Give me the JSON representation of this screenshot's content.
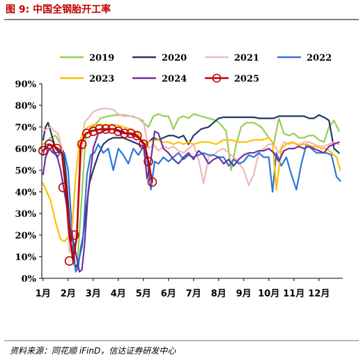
{
  "header": {
    "title": "图 9:  中国全钢胎开工率"
  },
  "footer": {
    "source": "资料来源：同花顺 iFinD，信达证券研发中心"
  },
  "chart_data": {
    "type": "line",
    "title": "",
    "xlabel": "",
    "ylabel": "",
    "ylim": [
      0,
      90
    ],
    "xlim": [
      0.95,
      12.95
    ],
    "y_ticks": [
      0,
      10,
      20,
      30,
      40,
      50,
      60,
      70,
      80,
      90
    ],
    "y_tick_labels": [
      "0%",
      "10%",
      "20%",
      "30%",
      "40%",
      "50%",
      "60%",
      "70%",
      "80%",
      "90%"
    ],
    "x_ticks": [
      1,
      2,
      3,
      4,
      5,
      6,
      7,
      8,
      9,
      10,
      11,
      12
    ],
    "x_tick_labels": [
      "1月",
      "2月",
      "3月",
      "4月",
      "5月",
      "6月",
      "7月",
      "8月",
      "9月",
      "10月",
      "11月",
      "12月"
    ],
    "legend": {
      "placement": "top",
      "columns": 4
    },
    "grid": false,
    "series": [
      {
        "name": "2019",
        "color": "#92d050",
        "markers": false,
        "x": [
          1.0,
          1.1,
          1.3,
          1.5,
          1.7,
          1.9,
          2.05,
          2.2,
          2.35,
          2.5,
          2.7,
          3.0,
          3.3,
          3.6,
          3.9,
          4.2,
          4.5,
          4.8,
          5.0,
          5.2,
          5.4,
          5.6,
          5.8,
          6.0,
          6.2,
          6.4,
          6.6,
          6.8,
          7.0,
          7.3,
          7.6,
          7.9,
          8.1,
          8.3,
          8.5,
          8.7,
          8.9,
          9.1,
          9.4,
          9.7,
          10.0,
          10.2,
          10.4,
          10.6,
          10.8,
          11.0,
          11.2,
          11.4,
          11.6,
          11.8,
          12.0,
          12.2,
          12.4,
          12.6,
          12.8
        ],
        "values": [
          62,
          63,
          65,
          66,
          62,
          48,
          20,
          7,
          4,
          30,
          66,
          70,
          74,
          75,
          75.5,
          75.5,
          75,
          74,
          72,
          70,
          75,
          76,
          75,
          75,
          69,
          74,
          75,
          74,
          76,
          75,
          74,
          73,
          71,
          68,
          50,
          62,
          70,
          72,
          72,
          70,
          65,
          62,
          74,
          67,
          66,
          67,
          65,
          65,
          66,
          66,
          64,
          63,
          70,
          73,
          68
        ]
      },
      {
        "name": "2020",
        "color": "#203864",
        "markers": false,
        "x": [
          1.0,
          1.1,
          1.2,
          1.35,
          1.5,
          1.65,
          1.8,
          1.9,
          2.0,
          2.1,
          2.2,
          2.3,
          2.4,
          2.55,
          2.7,
          2.85,
          3.0,
          3.2,
          3.4,
          3.6,
          3.8,
          4.0,
          4.2,
          4.4,
          4.6,
          4.8,
          5.0,
          5.2,
          5.4,
          5.6,
          5.8,
          6.0,
          6.2,
          6.4,
          6.6,
          6.8,
          7.0,
          7.3,
          7.6,
          7.8,
          8.0,
          8.2,
          8.4,
          8.6,
          8.8,
          9.0,
          9.2,
          9.4,
          9.6,
          9.8,
          10.0,
          10.2,
          10.4,
          10.6,
          10.8,
          11.0,
          11.2,
          11.4,
          11.6,
          11.8,
          12.0,
          12.2,
          12.4,
          12.6,
          12.8
        ],
        "values": [
          64,
          70,
          72,
          66,
          60,
          58,
          59,
          50,
          35,
          20,
          10,
          5,
          7,
          15,
          30,
          44,
          50,
          57,
          62,
          64,
          65,
          65,
          65,
          64,
          63,
          62,
          61,
          63,
          65,
          64,
          65,
          66,
          66,
          65,
          66,
          62,
          66,
          69,
          70,
          72,
          74,
          74.5,
          74.5,
          74.5,
          74.5,
          74.5,
          74.5,
          74.5,
          74,
          74,
          74,
          74,
          75,
          75,
          75,
          75,
          75,
          75,
          74,
          74,
          75.5,
          74.5,
          73,
          60,
          58
        ]
      },
      {
        "name": "2021",
        "color": "#f4b6b6",
        "markers": false,
        "x": [
          1.0,
          1.15,
          1.3,
          1.45,
          1.6,
          1.75,
          1.9,
          2.05,
          2.2,
          2.35,
          2.5,
          2.65,
          2.8,
          3.0,
          3.2,
          3.4,
          3.6,
          3.8,
          4.0,
          4.2,
          4.4,
          4.6,
          4.8,
          5.0,
          5.2,
          5.4,
          5.6,
          5.8,
          6.0,
          6.2,
          6.4,
          6.6,
          6.8,
          7.0,
          7.2,
          7.4,
          7.6,
          7.8,
          8.0,
          8.2,
          8.4,
          8.6,
          8.8,
          9.0,
          9.2,
          9.4,
          9.6,
          9.8,
          10.0,
          10.2,
          10.4,
          10.6,
          10.8,
          11.0,
          11.2,
          11.4,
          11.6,
          11.8,
          12.0,
          12.2,
          12.4,
          12.6,
          12.8
        ],
        "values": [
          68,
          69,
          70,
          68,
          67,
          60,
          40,
          12,
          18,
          22,
          52,
          72,
          74,
          77,
          78,
          78.5,
          78.5,
          78,
          76,
          75,
          75,
          75,
          74,
          73,
          60,
          62,
          59,
          61,
          60,
          61,
          59,
          58,
          60,
          62,
          55,
          44,
          56,
          57,
          59,
          60,
          58,
          56,
          54,
          50,
          43,
          48,
          58,
          60,
          62,
          62,
          58,
          63,
          62,
          63,
          61,
          63,
          63,
          62,
          61,
          61,
          62,
          63,
          62
        ]
      },
      {
        "name": "2022",
        "color": "#2e75d6",
        "markers": false,
        "x": [
          1.0,
          1.1,
          1.25,
          1.4,
          1.55,
          1.7,
          1.85,
          2.0,
          2.1,
          2.2,
          2.3,
          2.4,
          2.5,
          2.6,
          2.75,
          2.9,
          3.05,
          3.2,
          3.4,
          3.6,
          3.8,
          4.0,
          4.2,
          4.4,
          4.6,
          4.8,
          5.0,
          5.15,
          5.3,
          5.45,
          5.6,
          5.8,
          6.0,
          6.2,
          6.4,
          6.6,
          6.8,
          7.0,
          7.2,
          7.4,
          7.6,
          7.8,
          8.0,
          8.2,
          8.4,
          8.6,
          8.8,
          9.0,
          9.2,
          9.4,
          9.6,
          9.8,
          10.0,
          10.15,
          10.3,
          10.5,
          10.7,
          10.9,
          11.1,
          11.3,
          11.5,
          11.7,
          11.9,
          12.1,
          12.3,
          12.5,
          12.7,
          12.85
        ],
        "values": [
          57,
          62,
          62,
          60,
          56,
          58,
          58,
          50,
          32,
          15,
          3,
          5,
          14,
          20,
          48,
          57,
          58,
          62,
          58,
          60,
          50,
          60,
          57,
          53,
          60,
          57,
          61,
          55,
          41,
          54,
          53,
          56,
          54,
          56,
          58,
          55,
          57,
          56,
          57,
          58,
          57,
          57,
          56,
          56,
          52,
          55,
          53,
          54,
          57,
          56,
          58,
          56,
          56,
          40,
          58,
          52,
          56,
          48,
          41,
          53,
          62,
          60,
          58,
          58,
          58,
          57,
          47,
          45
        ]
      },
      {
        "name": "2023",
        "color": "#ffc000",
        "markers": false,
        "x": [
          1.0,
          1.15,
          1.3,
          1.5,
          1.7,
          1.85,
          2.0,
          2.15,
          2.3,
          2.45,
          2.6,
          2.8,
          3.0,
          3.3,
          3.6,
          3.9,
          4.2,
          4.5,
          4.8,
          5.0,
          5.2,
          5.4,
          5.6,
          5.8,
          6.0,
          6.2,
          6.4,
          6.6,
          6.8,
          7.0,
          7.3,
          7.6,
          7.9,
          8.2,
          8.5,
          8.8,
          9.1,
          9.4,
          9.7,
          10.0,
          10.15,
          10.3,
          10.5,
          10.7,
          10.9,
          11.1,
          11.3,
          11.5,
          11.7,
          11.9,
          12.1,
          12.3,
          12.5,
          12.7,
          12.85
        ],
        "values": [
          44,
          40,
          36,
          26,
          18,
          17,
          19,
          22,
          47,
          62,
          68,
          70,
          71,
          71,
          71,
          71,
          70,
          69,
          67,
          62,
          63,
          64,
          64,
          63,
          63,
          62,
          63,
          62,
          63,
          62,
          63,
          63,
          62,
          64,
          64,
          63,
          63,
          64,
          64,
          65,
          63,
          41,
          60,
          62,
          63,
          62,
          62,
          62,
          61,
          61,
          60,
          60,
          58,
          56,
          50
        ]
      },
      {
        "name": "2024",
        "color": "#7030a0",
        "markers": false,
        "x": [
          1.0,
          1.1,
          1.25,
          1.4,
          1.55,
          1.7,
          1.85,
          2.0,
          2.15,
          2.3,
          2.45,
          2.55,
          2.65,
          2.8,
          3.0,
          3.2,
          3.4,
          3.6,
          3.8,
          4.0,
          4.2,
          4.4,
          4.6,
          4.8,
          5.0,
          5.15,
          5.3,
          5.45,
          5.6,
          5.8,
          6.0,
          6.2,
          6.4,
          6.6,
          6.8,
          7.0,
          7.2,
          7.4,
          7.6,
          7.8,
          8.0,
          8.2,
          8.4,
          8.6,
          8.8,
          9.0,
          9.2,
          9.4,
          9.6,
          9.8,
          10.0,
          10.2,
          10.4,
          10.6,
          10.8,
          11.0,
          11.2,
          11.4,
          11.6,
          11.8,
          12.0,
          12.2,
          12.4,
          12.6,
          12.8
        ],
        "values": [
          48,
          56,
          60,
          58,
          57,
          50,
          40,
          30,
          20,
          12,
          3,
          4,
          15,
          40,
          60,
          67,
          68,
          69,
          69,
          68,
          67,
          67,
          66,
          65,
          62,
          46,
          55,
          68,
          67,
          60,
          58,
          55,
          53,
          56,
          58,
          55,
          59,
          57,
          53,
          55,
          56,
          53,
          55,
          52,
          55,
          57,
          58,
          58,
          59,
          59,
          60,
          58,
          54,
          59,
          60,
          60,
          61,
          60,
          61,
          60,
          59,
          58,
          61,
          62,
          63
        ]
      },
      {
        "name": "2025",
        "color": "#c00000",
        "markers": true,
        "x": [
          1.0,
          1.1,
          1.25,
          1.45,
          1.6,
          1.75,
          1.9,
          2.05,
          2.2,
          2.35,
          2.5,
          2.7,
          2.9,
          3.1,
          3.3,
          3.5,
          3.7,
          3.85,
          4.0,
          4.15,
          4.3,
          4.45,
          4.6,
          4.75,
          4.9,
          5.05,
          5.2,
          5.35
        ],
        "values": [
          59,
          60,
          62,
          61,
          60,
          58,
          42,
          20,
          8,
          20,
          62,
          67,
          68,
          68.5,
          69,
          69,
          69,
          69,
          68.5,
          68,
          67,
          67,
          67,
          66,
          64,
          62,
          54,
          44.5
        ],
        "marker_x": [
          1.0,
          1.25,
          1.55,
          1.8,
          2.05,
          2.25,
          2.55,
          2.75,
          3.0,
          3.25,
          3.5,
          3.75,
          4.0,
          4.25,
          4.5,
          4.75,
          5.0,
          5.2,
          5.35
        ],
        "marker_values": [
          59,
          62,
          60,
          42,
          8,
          20,
          62,
          67,
          68,
          69,
          69,
          69,
          68,
          67,
          67,
          66,
          62,
          54,
          44.5
        ]
      }
    ]
  }
}
